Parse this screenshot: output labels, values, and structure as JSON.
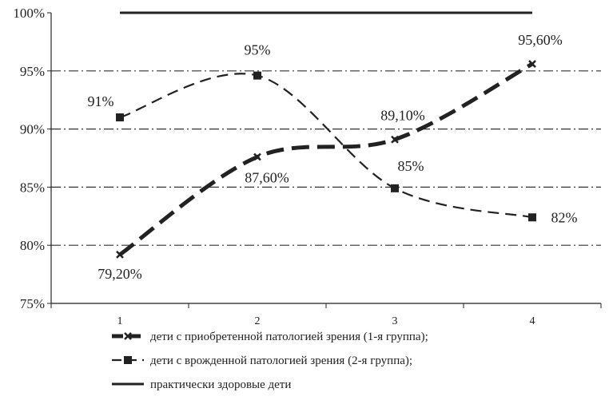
{
  "chart_data": {
    "type": "line",
    "x": [
      "1",
      "2",
      "3",
      "4"
    ],
    "ylim": [
      75,
      100
    ],
    "y_ticks": [
      "75%",
      "80%",
      "85%",
      "90%",
      "95%",
      "100%"
    ],
    "grid": "dash-dot horizontal",
    "legend_position": "bottom",
    "series": [
      {
        "name": "дети с приобретенной патологией зрения (1-я группа);",
        "values": [
          79.2,
          87.6,
          89.1,
          95.6
        ],
        "labels": [
          "79,20%",
          "87,60%",
          "89,10%",
          "95,60%"
        ],
        "marker": "x",
        "color": "#222222"
      },
      {
        "name": "дети с врожденной патологией зрения (2-я группа);",
        "values": [
          91,
          94.6,
          84.9,
          82.4
        ],
        "labels": [
          "91%",
          "95%",
          "85%",
          "82%"
        ],
        "marker": "square",
        "color": "#222222"
      },
      {
        "name": "практически здоровые дети",
        "values": [
          100,
          100,
          100,
          100
        ],
        "color": "#222222"
      }
    ]
  }
}
